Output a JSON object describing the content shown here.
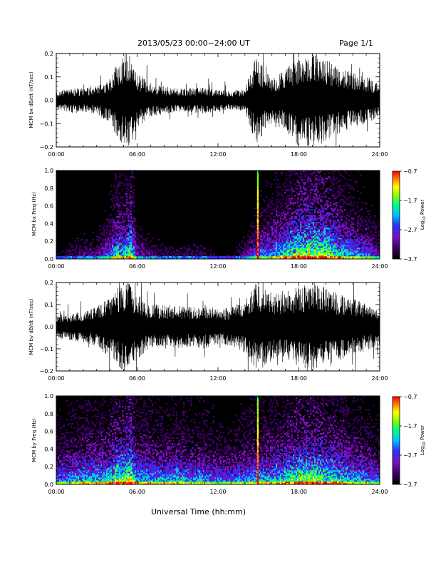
{
  "header": {
    "date_range": "2013/05/23  00:00−24:00 UT",
    "page_label": "Page 1/1"
  },
  "footer": {
    "xlabel": "Universal Time (hh:mm)"
  },
  "x_tick_labels": [
    "00:00",
    "06:00",
    "12:00",
    "18:00",
    "24:00"
  ],
  "chart_data": [
    {
      "type": "line",
      "panel": "bx-waveform",
      "ylabel": "MCM bx dB/dt (nT/sec)",
      "xlim": [
        0,
        24
      ],
      "ylim": [
        -0.2,
        0.2
      ],
      "y_tick_labels": [
        "0.2",
        "0.1",
        "0.0",
        "−0.1",
        "−0.2"
      ],
      "series_color": "#000000",
      "envelope": {
        "x_hours": [
          0,
          1,
          2,
          3,
          4,
          4.5,
          5,
          5.5,
          6,
          7,
          8,
          9,
          10,
          11,
          12,
          13,
          14,
          14.9,
          15.5,
          16,
          17,
          18,
          19,
          20,
          21,
          22,
          23,
          24
        ],
        "amplitude": [
          0.04,
          0.05,
          0.05,
          0.06,
          0.1,
          0.16,
          0.2,
          0.2,
          0.12,
          0.07,
          0.06,
          0.05,
          0.05,
          0.06,
          0.05,
          0.04,
          0.05,
          0.2,
          0.12,
          0.1,
          0.13,
          0.2,
          0.2,
          0.18,
          0.14,
          0.12,
          0.1,
          0.07
        ]
      }
    },
    {
      "type": "heatmap",
      "panel": "bx-spectrogram",
      "ylabel": "MCM bx Freq (Hz)",
      "xlim": [
        0,
        24
      ],
      "ylim": [
        0,
        1.0
      ],
      "y_tick_labels": [
        "1.0",
        "0.8",
        "0.6",
        "0.4",
        "0.2",
        "0.0"
      ],
      "colorbar": {
        "label": "Log10 Power",
        "min": -3.7,
        "max": -0.7,
        "tick_labels": [
          "−0.7",
          "−1.7",
          "−2.7",
          "−3.7"
        ]
      },
      "activity": {
        "x_hours": [
          0,
          1,
          2,
          3,
          4,
          4.5,
          5,
          5.5,
          6,
          7,
          8,
          9,
          10,
          11,
          12,
          13,
          14,
          15,
          16,
          17,
          18,
          19,
          20,
          21,
          22,
          23,
          24
        ],
        "level": [
          0.2,
          0.25,
          0.3,
          0.3,
          0.45,
          0.6,
          0.55,
          0.7,
          0.35,
          0.3,
          0.25,
          0.25,
          0.25,
          0.25,
          0.2,
          0.2,
          0.3,
          0.45,
          0.5,
          0.6,
          0.7,
          0.75,
          0.7,
          0.6,
          0.5,
          0.45,
          0.35
        ]
      },
      "spike_hour": 14.95
    },
    {
      "type": "line",
      "panel": "by-waveform",
      "ylabel": "MCM by dB/dt (nT/sec)",
      "xlim": [
        0,
        24
      ],
      "ylim": [
        -0.2,
        0.2
      ],
      "y_tick_labels": [
        "0.2",
        "0.1",
        "0.0",
        "−0.1",
        "−0.2"
      ],
      "series_color": "#000000",
      "envelope": {
        "x_hours": [
          0,
          1,
          2,
          3,
          4,
          4.5,
          5,
          5.5,
          6,
          7,
          8,
          9,
          10,
          11,
          12,
          13,
          14,
          14.9,
          15.5,
          16,
          17,
          18,
          19,
          20,
          21,
          22,
          23,
          24
        ],
        "amplitude": [
          0.05,
          0.06,
          0.07,
          0.09,
          0.14,
          0.18,
          0.2,
          0.2,
          0.15,
          0.1,
          0.1,
          0.1,
          0.09,
          0.1,
          0.08,
          0.09,
          0.12,
          0.2,
          0.18,
          0.16,
          0.16,
          0.18,
          0.2,
          0.18,
          0.15,
          0.13,
          0.11,
          0.08
        ]
      }
    },
    {
      "type": "heatmap",
      "panel": "by-spectrogram",
      "ylabel": "MCM by Freq (Hz)",
      "xlim": [
        0,
        24
      ],
      "ylim": [
        0,
        1.0
      ],
      "y_tick_labels": [
        "1.0",
        "0.8",
        "0.6",
        "0.4",
        "0.2",
        "0.0"
      ],
      "colorbar": {
        "label": "Log10 Power",
        "min": -3.7,
        "max": -0.7,
        "tick_labels": [
          "−0.7",
          "−1.7",
          "−2.7",
          "−3.7"
        ]
      },
      "activity": {
        "x_hours": [
          0,
          1,
          2,
          3,
          4,
          4.5,
          5,
          5.5,
          6,
          7,
          8,
          9,
          10,
          11,
          12,
          13,
          14,
          15,
          16,
          17,
          18,
          19,
          20,
          21,
          22,
          23,
          24
        ],
        "level": [
          0.45,
          0.5,
          0.55,
          0.55,
          0.6,
          0.7,
          0.7,
          0.75,
          0.55,
          0.55,
          0.5,
          0.55,
          0.5,
          0.5,
          0.45,
          0.45,
          0.5,
          0.55,
          0.55,
          0.6,
          0.7,
          0.7,
          0.65,
          0.6,
          0.55,
          0.5,
          0.45
        ]
      },
      "spike_hour": 14.95
    }
  ],
  "colors": {
    "axis": "#000000",
    "background": "#ffffff",
    "spectrogram_background": "#000000",
    "spike": "#e0e020",
    "colormap": [
      "#000000",
      "#3a0060",
      "#7a10c0",
      "#2a30ff",
      "#00c0ff",
      "#00ff80",
      "#80ff00",
      "#ffff00",
      "#ff8000",
      "#ff0000"
    ]
  }
}
